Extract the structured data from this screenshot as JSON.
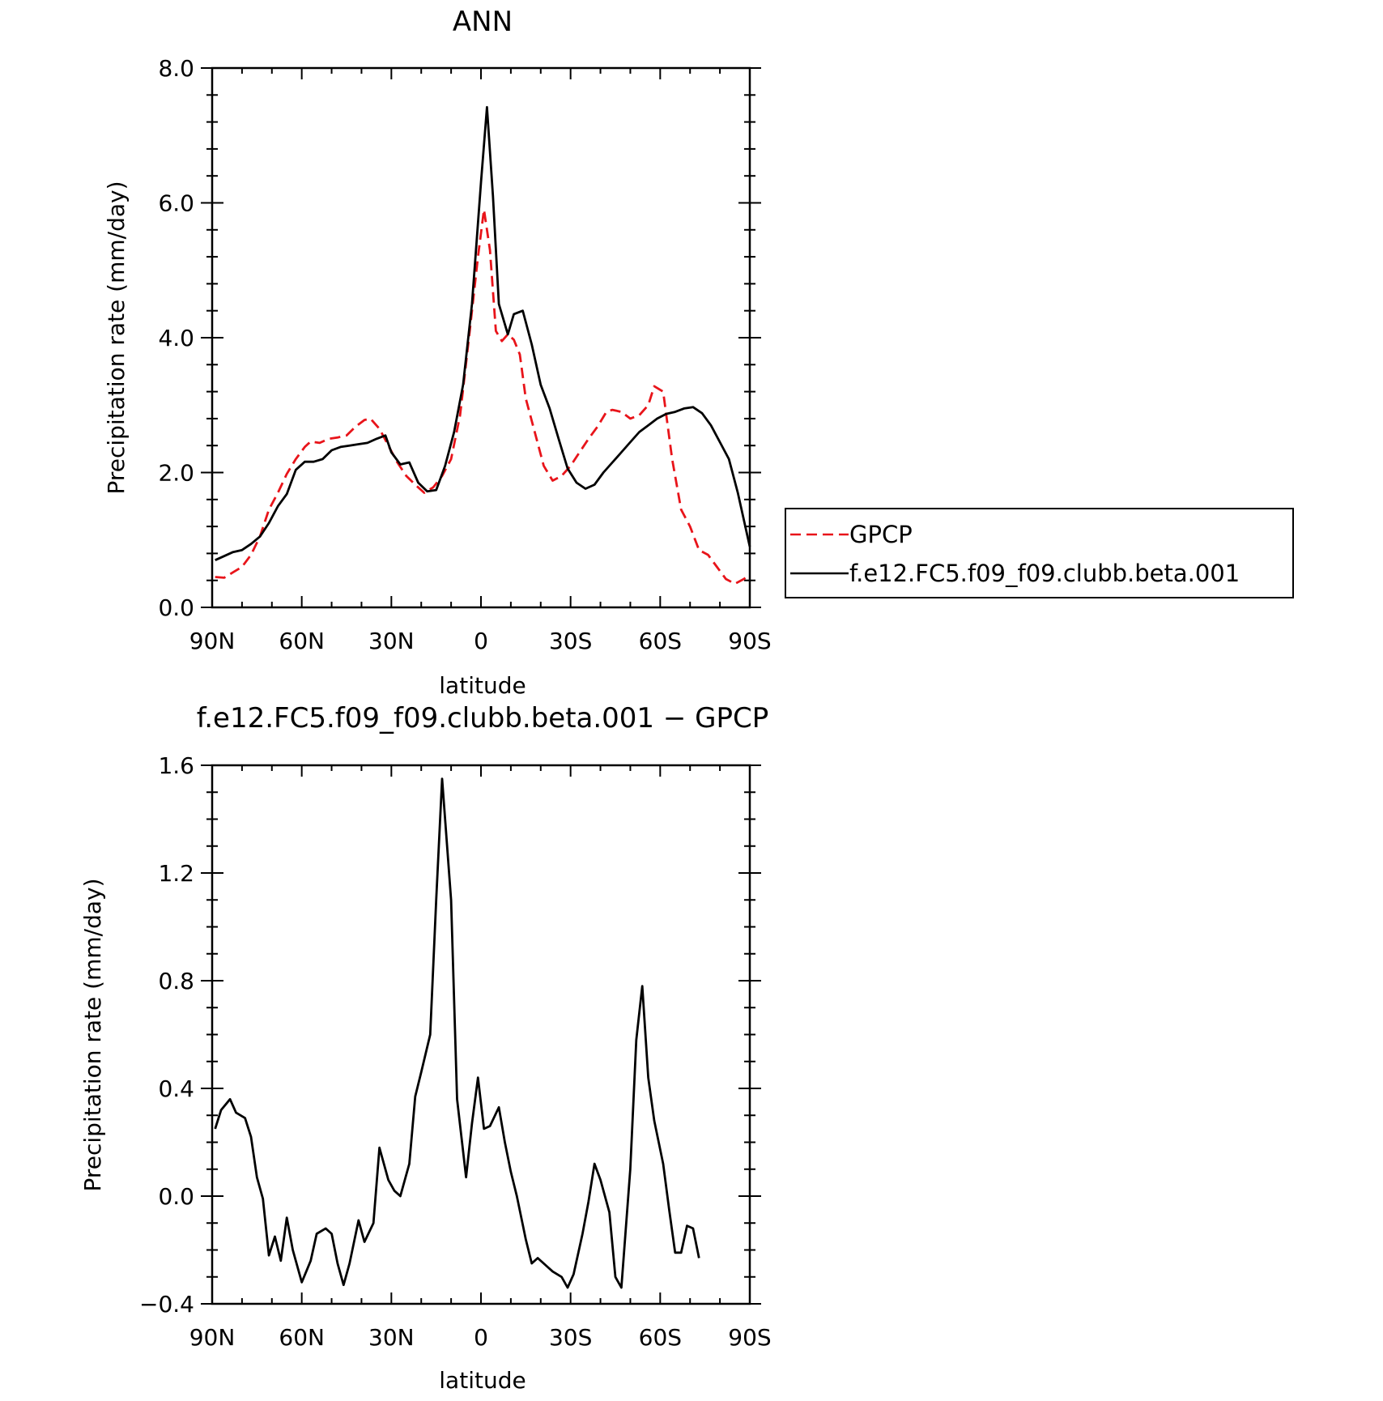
{
  "chart_data": [
    {
      "type": "line",
      "title": "ANN",
      "xlabel": "latitude",
      "ylabel": "Precipitation rate (mm/day)",
      "xlim": [
        90,
        -90
      ],
      "ylim": [
        0.0,
        8.0
      ],
      "x_ticks": [
        {
          "value": 90,
          "label": "90N"
        },
        {
          "value": 60,
          "label": "60N"
        },
        {
          "value": 30,
          "label": "30N"
        },
        {
          "value": 0,
          "label": "0"
        },
        {
          "value": -30,
          "label": "30S"
        },
        {
          "value": -60,
          "label": "60S"
        },
        {
          "value": -90,
          "label": "90S"
        }
      ],
      "y_ticks": [
        {
          "value": 0,
          "label": "0.0"
        },
        {
          "value": 2,
          "label": "2.0"
        },
        {
          "value": 4,
          "label": "4.0"
        },
        {
          "value": 6,
          "label": "6.0"
        },
        {
          "value": 8,
          "label": "8.0"
        }
      ],
      "legend_position": "right",
      "series": [
        {
          "name": "GPCP",
          "color": "#e8141a",
          "dash": "dashed",
          "points": [
            [
              89,
              0.45
            ],
            [
              86,
              0.44
            ],
            [
              83,
              0.52
            ],
            [
              80,
              0.6
            ],
            [
              77,
              0.78
            ],
            [
              74,
              1.05
            ],
            [
              71,
              1.45
            ],
            [
              68,
              1.7
            ],
            [
              65,
              1.98
            ],
            [
              62,
              2.2
            ],
            [
              59,
              2.38
            ],
            [
              57,
              2.46
            ],
            [
              54,
              2.44
            ],
            [
              51,
              2.5
            ],
            [
              48,
              2.52
            ],
            [
              45,
              2.55
            ],
            [
              42,
              2.68
            ],
            [
              39,
              2.78
            ],
            [
              37,
              2.8
            ],
            [
              34,
              2.65
            ],
            [
              31,
              2.4
            ],
            [
              28,
              2.15
            ],
            [
              25,
              1.95
            ],
            [
              22,
              1.82
            ],
            [
              19,
              1.7
            ],
            [
              16,
              1.78
            ],
            [
              13,
              1.95
            ],
            [
              10,
              2.2
            ],
            [
              7,
              2.85
            ],
            [
              4,
              4.0
            ],
            [
              1,
              5.2
            ],
            [
              -1,
              5.9
            ],
            [
              -3,
              5.3
            ],
            [
              -5,
              4.1
            ],
            [
              -7,
              3.95
            ],
            [
              -9,
              4.05
            ],
            [
              -11,
              3.97
            ],
            [
              -13,
              3.75
            ],
            [
              -15,
              3.1
            ],
            [
              -18,
              2.6
            ],
            [
              -21,
              2.1
            ],
            [
              -24,
              1.88
            ],
            [
              -27,
              1.95
            ],
            [
              -30,
              2.1
            ],
            [
              -33,
              2.3
            ],
            [
              -36,
              2.5
            ],
            [
              -39,
              2.68
            ],
            [
              -42,
              2.9
            ],
            [
              -44,
              2.93
            ],
            [
              -47,
              2.9
            ],
            [
              -50,
              2.8
            ],
            [
              -53,
              2.85
            ],
            [
              -56,
              3.0
            ],
            [
              -58,
              3.28
            ],
            [
              -61,
              3.2
            ],
            [
              -64,
              2.2
            ],
            [
              -67,
              1.45
            ],
            [
              -70,
              1.2
            ],
            [
              -73,
              0.85
            ],
            [
              -76,
              0.78
            ],
            [
              -79,
              0.6
            ],
            [
              -82,
              0.42
            ],
            [
              -85,
              0.35
            ],
            [
              -88,
              0.42
            ],
            [
              -90,
              0.48
            ]
          ]
        },
        {
          "name": "f.e12.FC5.f09_f09.clubb.beta.001",
          "color": "#000000",
          "dash": "solid",
          "points": [
            [
              89,
              0.7
            ],
            [
              86,
              0.76
            ],
            [
              83,
              0.82
            ],
            [
              80,
              0.85
            ],
            [
              77,
              0.94
            ],
            [
              74,
              1.05
            ],
            [
              71,
              1.25
            ],
            [
              68,
              1.5
            ],
            [
              65,
              1.68
            ],
            [
              62,
              2.04
            ],
            [
              59,
              2.16
            ],
            [
              56,
              2.16
            ],
            [
              53,
              2.2
            ],
            [
              50,
              2.33
            ],
            [
              47,
              2.38
            ],
            [
              44,
              2.4
            ],
            [
              41,
              2.42
            ],
            [
              38,
              2.44
            ],
            [
              35,
              2.5
            ],
            [
              32,
              2.55
            ],
            [
              30,
              2.3
            ],
            [
              27,
              2.12
            ],
            [
              24,
              2.15
            ],
            [
              21,
              1.85
            ],
            [
              18,
              1.72
            ],
            [
              15,
              1.74
            ],
            [
              12,
              2.1
            ],
            [
              9,
              2.6
            ],
            [
              6,
              3.3
            ],
            [
              3,
              4.5
            ],
            [
              0,
              6.3
            ],
            [
              -2,
              7.42
            ],
            [
              -4,
              6.1
            ],
            [
              -6,
              4.5
            ],
            [
              -9,
              4.05
            ],
            [
              -11,
              4.35
            ],
            [
              -14,
              4.4
            ],
            [
              -17,
              3.9
            ],
            [
              -20,
              3.3
            ],
            [
              -23,
              2.95
            ],
            [
              -26,
              2.5
            ],
            [
              -29,
              2.06
            ],
            [
              -32,
              1.85
            ],
            [
              -35,
              1.76
            ],
            [
              -38,
              1.82
            ],
            [
              -41,
              2.0
            ],
            [
              -44,
              2.15
            ],
            [
              -47,
              2.3
            ],
            [
              -50,
              2.45
            ],
            [
              -53,
              2.6
            ],
            [
              -56,
              2.7
            ],
            [
              -59,
              2.8
            ],
            [
              -62,
              2.87
            ],
            [
              -65,
              2.9
            ],
            [
              -68,
              2.95
            ],
            [
              -71,
              2.97
            ],
            [
              -74,
              2.88
            ],
            [
              -77,
              2.7
            ],
            [
              -80,
              2.45
            ],
            [
              -83,
              2.2
            ],
            [
              -86,
              1.7
            ],
            [
              -89,
              1.1
            ],
            [
              -90,
              0.9
            ]
          ]
        }
      ]
    },
    {
      "type": "line",
      "title": "f.e12.FC5.f09_f09.clubb.beta.001 − GPCP",
      "xlabel": "latitude",
      "ylabel": "Precipitation rate (mm/day)",
      "xlim": [
        90,
        -90
      ],
      "ylim": [
        -0.4,
        1.6
      ],
      "x_ticks": [
        {
          "value": 90,
          "label": "90N"
        },
        {
          "value": 60,
          "label": "60N"
        },
        {
          "value": 30,
          "label": "30N"
        },
        {
          "value": 0,
          "label": "0"
        },
        {
          "value": -30,
          "label": "30S"
        },
        {
          "value": -60,
          "label": "60S"
        },
        {
          "value": -90,
          "label": "90S"
        }
      ],
      "y_ticks": [
        {
          "value": -0.4,
          "label": "−0.4"
        },
        {
          "value": 0.0,
          "label": "0.0"
        },
        {
          "value": 0.4,
          "label": "0.4"
        },
        {
          "value": 0.8,
          "label": "0.8"
        },
        {
          "value": 1.2,
          "label": "1.2"
        },
        {
          "value": 1.6,
          "label": "1.6"
        }
      ],
      "series": [
        {
          "color": "#000000",
          "dash": "solid",
          "points": [
            [
              89,
              0.25
            ],
            [
              87,
              0.32
            ],
            [
              84,
              0.36
            ],
            [
              82,
              0.31
            ],
            [
              79,
              0.29
            ],
            [
              77,
              0.22
            ],
            [
              75,
              0.07
            ],
            [
              73,
              -0.01
            ],
            [
              71,
              -0.22
            ],
            [
              69,
              -0.15
            ],
            [
              67,
              -0.24
            ],
            [
              65,
              -0.08
            ],
            [
              63,
              -0.2
            ],
            [
              60,
              -0.32
            ],
            [
              57,
              -0.24
            ],
            [
              55,
              -0.14
            ],
            [
              52,
              -0.12
            ],
            [
              50,
              -0.14
            ],
            [
              48,
              -0.25
            ],
            [
              46,
              -0.33
            ],
            [
              44,
              -0.25
            ],
            [
              41,
              -0.09
            ],
            [
              39,
              -0.17
            ],
            [
              36,
              -0.1
            ],
            [
              34,
              0.18
            ],
            [
              31,
              0.06
            ],
            [
              29,
              0.02
            ],
            [
              27,
              0.0
            ],
            [
              24,
              0.12
            ],
            [
              22,
              0.37
            ],
            [
              20,
              0.46
            ],
            [
              17,
              0.6
            ],
            [
              15,
              1.1
            ],
            [
              13,
              1.55
            ],
            [
              10,
              1.1
            ],
            [
              8,
              0.36
            ],
            [
              5,
              0.07
            ],
            [
              3,
              0.27
            ],
            [
              1,
              0.44
            ],
            [
              -1,
              0.25
            ],
            [
              -3,
              0.26
            ],
            [
              -6,
              0.33
            ],
            [
              -8,
              0.2
            ],
            [
              -10,
              0.09
            ],
            [
              -12,
              0.0
            ],
            [
              -15,
              -0.16
            ],
            [
              -17,
              -0.25
            ],
            [
              -19,
              -0.23
            ],
            [
              -22,
              -0.26
            ],
            [
              -24,
              -0.28
            ],
            [
              -27,
              -0.3
            ],
            [
              -29,
              -0.34
            ],
            [
              -31,
              -0.29
            ],
            [
              -34,
              -0.14
            ],
            [
              -36,
              -0.02
            ],
            [
              -38,
              0.12
            ],
            [
              -40,
              0.06
            ],
            [
              -43,
              -0.06
            ],
            [
              -45,
              -0.3
            ],
            [
              -47,
              -0.34
            ],
            [
              -50,
              0.1
            ],
            [
              -52,
              0.58
            ],
            [
              -54,
              0.78
            ],
            [
              -56,
              0.44
            ],
            [
              -58,
              0.28
            ],
            [
              -61,
              0.12
            ],
            [
              -63,
              -0.05
            ],
            [
              -65,
              -0.21
            ],
            [
              -67,
              -0.21
            ],
            [
              -69,
              -0.11
            ],
            [
              -71,
              -0.12
            ],
            [
              -73,
              -0.23
            ]
          ]
        }
      ]
    }
  ]
}
